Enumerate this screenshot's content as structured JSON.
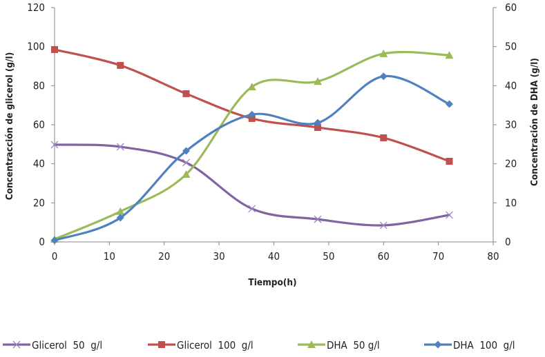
{
  "chart_data": {
    "type": "line",
    "title": "",
    "xlabel": "Tiempo(h)",
    "ylabel": "Concentracción de glicerol  (g/l)",
    "y2label": "Concentración de DHA (g/l)",
    "xlim": [
      0,
      80
    ],
    "ylim": [
      0,
      120
    ],
    "y2lim": [
      0,
      60
    ],
    "x_ticks": [
      0,
      10,
      20,
      30,
      40,
      50,
      60,
      70,
      80
    ],
    "y_ticks": [
      0,
      20,
      40,
      60,
      80,
      100,
      120
    ],
    "y2_ticks": [
      0,
      10,
      20,
      30,
      40,
      50,
      60
    ],
    "grid": false,
    "smooth": true,
    "legend_position": "bottom",
    "x": [
      0,
      12,
      24,
      36,
      48,
      60,
      72
    ],
    "series": [
      {
        "name": "Glicerol  50  g/l",
        "axis": "left",
        "color": "#8064a2",
        "marker": "x",
        "values": [
          49.8,
          48.7,
          40.6,
          17.0,
          11.6,
          8.5,
          13.8
        ]
      },
      {
        "name": "Glicerol  100  g/l",
        "axis": "left",
        "color": "#c0504d",
        "marker": "square",
        "values": [
          98.5,
          90.4,
          75.9,
          63.2,
          58.6,
          53.3,
          41.3
        ]
      },
      {
        "name": "DHA  50 g/l",
        "axis": "right",
        "color": "#9bbb59",
        "marker": "triangle",
        "values": [
          0.7,
          7.8,
          17.3,
          39.7,
          41.1,
          48.2,
          47.8
        ]
      },
      {
        "name": "DHA  100  g/l",
        "axis": "right",
        "color": "#4f81bd",
        "marker": "diamond",
        "values": [
          0.4,
          6.2,
          23.3,
          32.6,
          30.5,
          42.4,
          35.3
        ]
      }
    ]
  }
}
